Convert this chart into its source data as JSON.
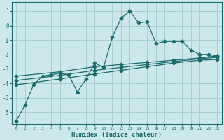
{
  "xlabel": "Humidex (Indice chaleur)",
  "bg_color": "#cde8e8",
  "grid_color": "#a8cece",
  "line_color": "#1a6b6b",
  "xlim": [
    -0.5,
    23.5
  ],
  "ylim": [
    -6.8,
    1.6
  ],
  "yticks": [
    1,
    0,
    -1,
    -2,
    -3,
    -4,
    -5,
    -6
  ],
  "xticks": [
    0,
    1,
    2,
    3,
    4,
    5,
    6,
    7,
    8,
    9,
    10,
    11,
    12,
    13,
    14,
    15,
    16,
    17,
    18,
    19,
    20,
    21,
    22,
    23
  ],
  "line1_x": [
    0,
    1,
    2,
    3,
    4,
    5,
    6,
    7,
    8,
    9,
    10,
    11,
    12,
    13,
    14,
    15,
    16,
    17,
    18,
    19,
    20,
    21,
    22,
    23
  ],
  "line1_y": [
    -6.6,
    -5.5,
    -4.1,
    -3.5,
    -3.4,
    -3.3,
    -3.4,
    -4.6,
    -3.7,
    -2.6,
    -2.9,
    -0.8,
    0.5,
    1.0,
    0.2,
    0.25,
    -1.25,
    -1.1,
    -1.1,
    -1.1,
    -1.7,
    -2.0,
    -2.0,
    -2.1
  ],
  "line2_x": [
    0,
    23
  ],
  "line2_y": [
    -3.5,
    -2.1
  ],
  "line3_x": [
    0,
    23
  ],
  "line3_y": [
    -3.8,
    -2.2
  ],
  "line4_x": [
    0,
    23
  ],
  "line4_y": [
    -4.1,
    -2.35
  ],
  "line2_markers_x": [
    0,
    5,
    9,
    12,
    15,
    18,
    21,
    23
  ],
  "line2_markers_y": [
    -3.5,
    -3.2,
    -2.85,
    -2.7,
    -2.55,
    -2.4,
    -2.25,
    -2.1
  ],
  "line3_markers_x": [
    0,
    5,
    9,
    12,
    15,
    18,
    21,
    23
  ],
  "line3_markers_y": [
    -3.8,
    -3.45,
    -3.1,
    -2.9,
    -2.7,
    -2.5,
    -2.3,
    -2.2
  ],
  "line4_markers_x": [
    0,
    5,
    9,
    12,
    15,
    18,
    21,
    23
  ],
  "line4_markers_y": [
    -4.1,
    -3.7,
    -3.35,
    -3.1,
    -2.85,
    -2.6,
    -2.4,
    -2.35
  ]
}
